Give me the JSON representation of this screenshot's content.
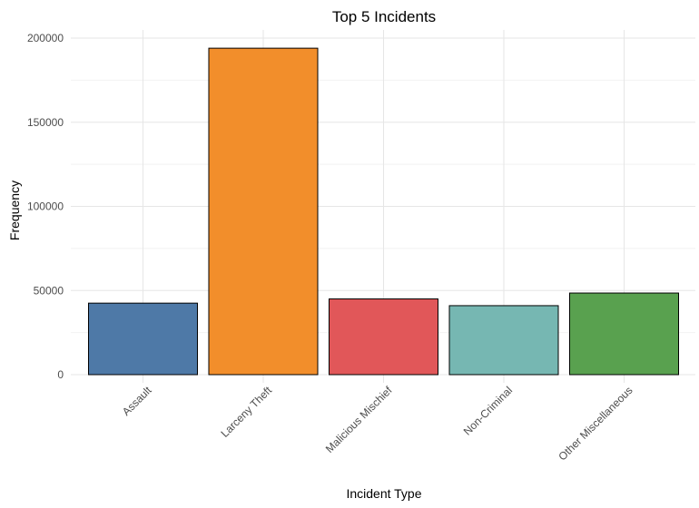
{
  "chart_data": {
    "type": "bar",
    "title": "Top 5 Incidents",
    "xlabel": "Incident Type",
    "ylabel": "Frequency",
    "categories": [
      "Assault",
      "Larceny Theft",
      "Malicious Mischief",
      "Non-Criminal",
      "Other Miscellaneous"
    ],
    "values": [
      42500,
      194000,
      45000,
      41000,
      48500
    ],
    "colors": [
      "#4e79a7",
      "#f28e2b",
      "#e15759",
      "#76b7b2",
      "#59a14f"
    ],
    "ylim": [
      0,
      200000
    ],
    "yticks": [
      0,
      50000,
      100000,
      150000,
      200000
    ],
    "ytick_labels": [
      "0",
      "50000",
      "100000",
      "150000",
      "200000"
    ],
    "grid": true,
    "legend": "none"
  }
}
